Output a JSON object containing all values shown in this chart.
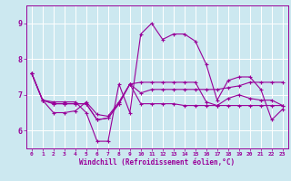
{
  "xlabel": "Windchill (Refroidissement éolien,°C)",
  "background_color": "#cce8f0",
  "grid_color": "#ffffff",
  "line_color": "#990099",
  "xlim": [
    -0.5,
    23.5
  ],
  "ylim": [
    5.5,
    9.5
  ],
  "yticks": [
    6,
    7,
    8,
    9
  ],
  "xticks": [
    0,
    1,
    2,
    3,
    4,
    5,
    6,
    7,
    8,
    9,
    10,
    11,
    12,
    13,
    14,
    15,
    16,
    17,
    18,
    19,
    20,
    21,
    22,
    23
  ],
  "series": [
    [
      7.6,
      6.85,
      6.5,
      6.5,
      6.55,
      6.8,
      6.45,
      6.4,
      6.8,
      7.3,
      7.35,
      7.35,
      7.35,
      7.35,
      7.35,
      7.35,
      6.8,
      6.7,
      6.9,
      7.0,
      6.9,
      6.85,
      6.85,
      6.7
    ],
    [
      7.6,
      6.85,
      6.8,
      6.8,
      6.8,
      6.5,
      5.7,
      5.7,
      7.3,
      6.5,
      8.7,
      9.0,
      8.55,
      8.7,
      8.7,
      8.5,
      7.85,
      6.85,
      7.4,
      7.5,
      7.5,
      7.15,
      6.3,
      6.6
    ],
    [
      7.6,
      6.85,
      6.75,
      6.75,
      6.75,
      6.75,
      6.3,
      6.35,
      6.75,
      7.3,
      6.75,
      6.75,
      6.75,
      6.75,
      6.7,
      6.7,
      6.7,
      6.7,
      6.7,
      6.7,
      6.7,
      6.7,
      6.7,
      6.7
    ],
    [
      7.6,
      6.85,
      6.75,
      6.75,
      6.75,
      6.75,
      6.3,
      6.35,
      6.75,
      7.3,
      7.05,
      7.15,
      7.15,
      7.15,
      7.15,
      7.15,
      7.15,
      7.15,
      7.2,
      7.25,
      7.35,
      7.35,
      7.35,
      7.35
    ]
  ]
}
